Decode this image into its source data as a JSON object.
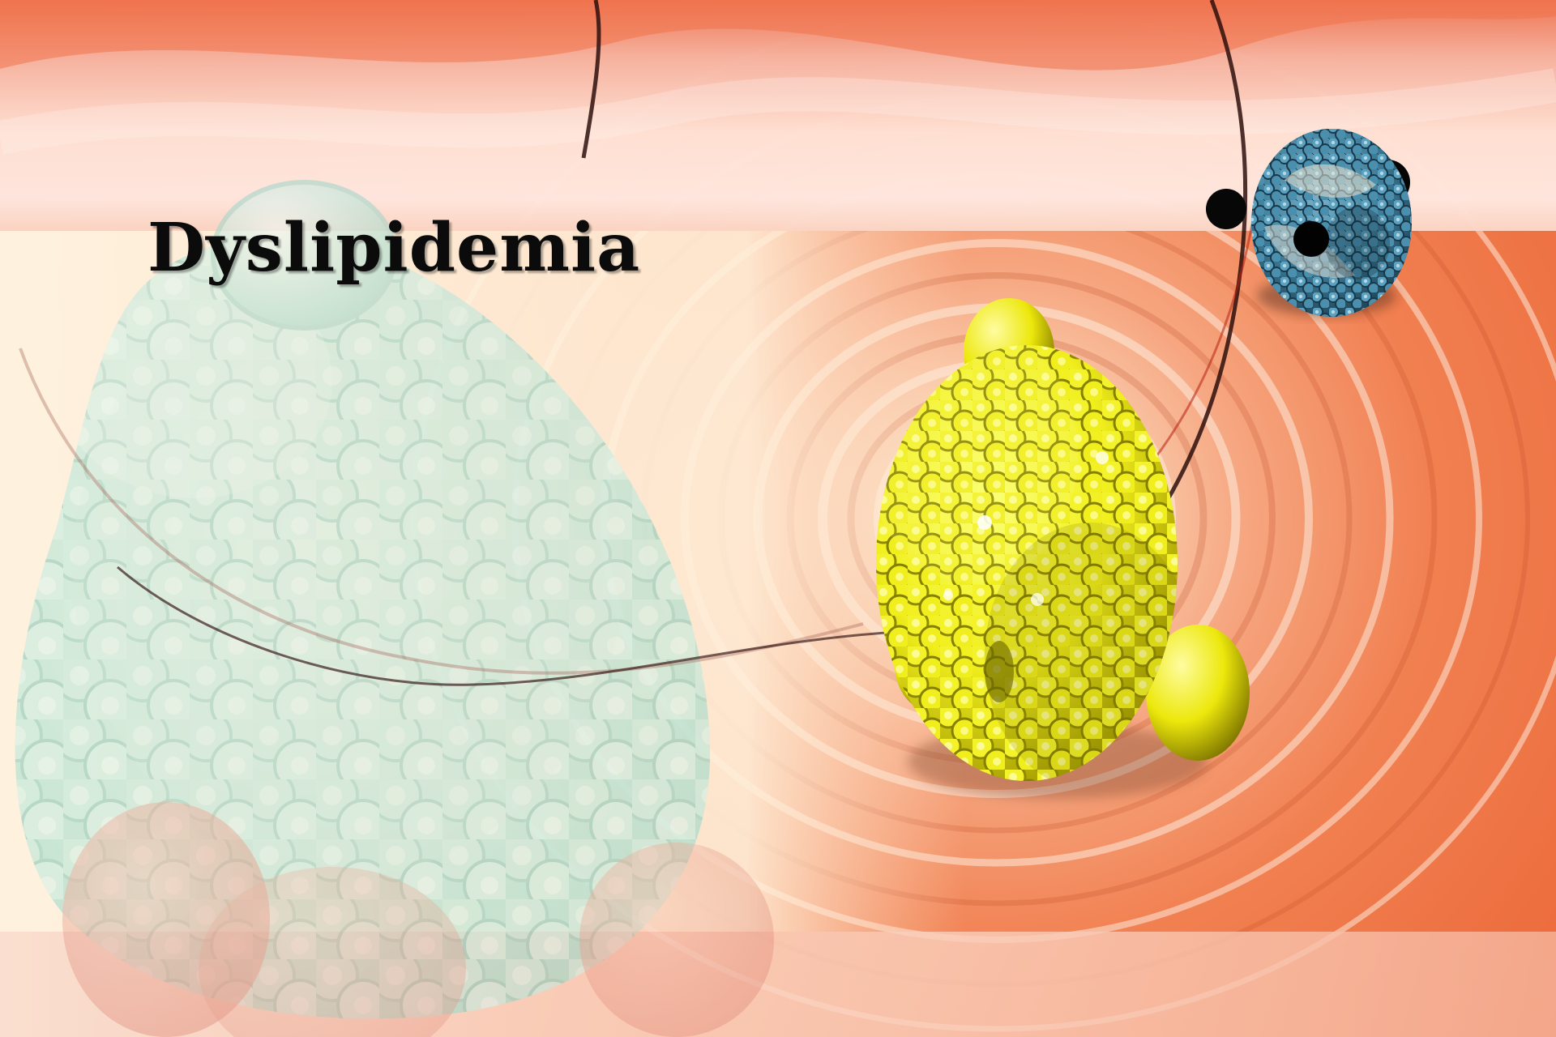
{
  "title": "Dyslipidemia"
}
